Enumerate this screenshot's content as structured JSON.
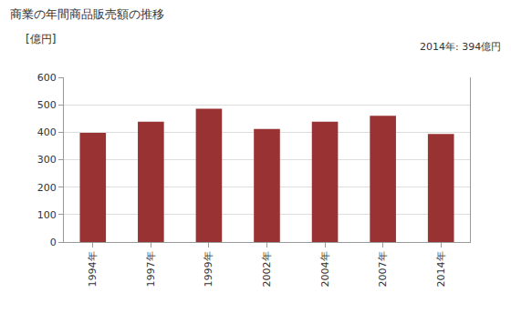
{
  "chart_data": {
    "type": "bar",
    "title": "商業の年間商品販売額の推移",
    "y_label": "[億円]",
    "annotations": [
      "2014年: 394億円"
    ],
    "categories": [
      "1994年",
      "1997年",
      "1999年",
      "2002年",
      "2004年",
      "2007年",
      "2014年"
    ],
    "values": [
      398,
      438,
      486,
      412,
      438,
      460,
      394
    ],
    "color": "#993333",
    "ylim": [
      0,
      600
    ],
    "yticks": [
      0,
      100,
      200,
      300,
      400,
      500,
      600
    ],
    "grid": true
  }
}
